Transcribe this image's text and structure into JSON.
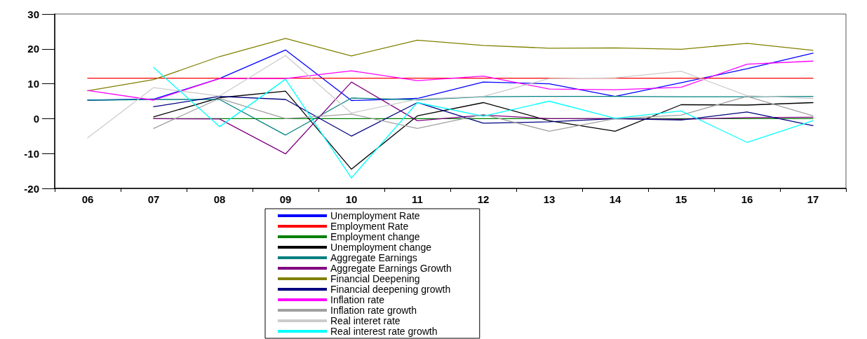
{
  "chart_data": {
    "type": "line",
    "categories": [
      "06",
      "07",
      "08",
      "09",
      "10",
      "11",
      "12",
      "13",
      "14",
      "15",
      "16",
      "17"
    ],
    "ylim": [
      -20,
      30
    ],
    "yticks": [
      -20,
      -10,
      0,
      10,
      20,
      30
    ],
    "grid": false,
    "legend": "bottom",
    "marker": "none",
    "line_style": "solid",
    "series": [
      {
        "name": "Unemployment Rate",
        "color": "#0000ff",
        "values": [
          5.3,
          5.6,
          11.5,
          19.7,
          5.2,
          5.8,
          10.5,
          10.0,
          6.4,
          10.3,
          14.3,
          18.8
        ]
      },
      {
        "name": "Employment Rate",
        "color": "#ff0000",
        "values": [
          11.6,
          11.6,
          11.6,
          11.6,
          11.6,
          11.6,
          11.6,
          11.6,
          11.6,
          11.6,
          11.6,
          11.6
        ]
      },
      {
        "name": "Employment change",
        "color": "#008000",
        "values": [
          null,
          0,
          0,
          0,
          0,
          0,
          0,
          0,
          0,
          0,
          0,
          0
        ]
      },
      {
        "name": "Unemployment change",
        "color": "#000000",
        "values": [
          null,
          0.5,
          6.0,
          7.9,
          -14.5,
          0.8,
          4.6,
          -0.6,
          -3.6,
          4.0,
          3.9,
          4.6
        ]
      },
      {
        "name": "Aggregate Earnings",
        "color": "#008080",
        "values": [
          5.3,
          5.5,
          5.5,
          -4.7,
          5.9,
          5.4,
          6.3,
          6.4,
          6.4,
          6.3,
          6.3,
          6.4
        ]
      },
      {
        "name": "Aggregate Earnings Growth",
        "color": "#800080",
        "values": [
          null,
          0,
          -0.1,
          -10.1,
          10.5,
          -0.6,
          1.0,
          0,
          0,
          -0.2,
          0.3,
          0.4
        ]
      },
      {
        "name": "Financial Deepening",
        "color": "#808000",
        "values": [
          8.0,
          11.2,
          17.8,
          23.0,
          18.0,
          22.5,
          21.0,
          20.2,
          20.3,
          19.9,
          21.6,
          19.6
        ]
      },
      {
        "name": "Financial deepening growth",
        "color": "#000080",
        "values": [
          null,
          3.4,
          6.4,
          5.5,
          -5.0,
          4.6,
          -1.3,
          -0.9,
          0,
          -0.4,
          1.9,
          -2.0
        ]
      },
      {
        "name": "Inflation rate",
        "color": "#ff00ff",
        "values": [
          8.1,
          5.3,
          11.5,
          11.5,
          13.7,
          10.9,
          12.2,
          8.5,
          8.3,
          9.0,
          15.6,
          16.5
        ]
      },
      {
        "name": "Inflation rate growth",
        "color": "#a0a0a0",
        "values": [
          null,
          -2.8,
          5.8,
          0,
          1.3,
          -2.8,
          1.2,
          -3.6,
          0,
          1.0,
          6.4,
          0.8
        ]
      },
      {
        "name": "Real interet rate",
        "color": "#cccccc",
        "values": [
          -5.5,
          8.9,
          6.5,
          18.1,
          1.6,
          5.6,
          6.4,
          11.5,
          11.7,
          13.6,
          6.6,
          5.8
        ]
      },
      {
        "name": "Real interest rate growth",
        "color": "#00ffff",
        "values": [
          null,
          14.7,
          -2.3,
          11.3,
          -17.0,
          4.6,
          0.7,
          5.0,
          0.1,
          2.2,
          -6.8,
          -0.6
        ]
      }
    ]
  }
}
